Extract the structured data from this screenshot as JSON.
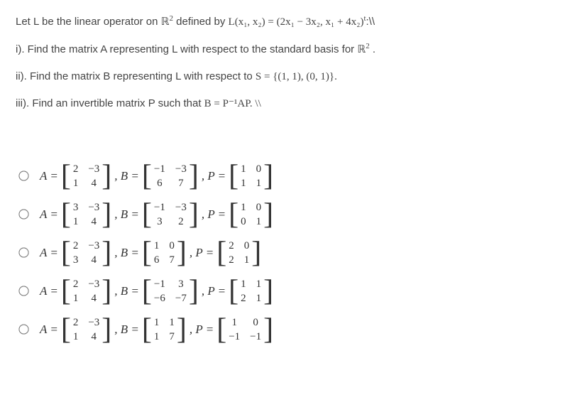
{
  "stem": {
    "line1_pre": "Let L be the linear operator on ",
    "line1_math1": "ℝ",
    "line1_math1_sup": "2",
    "line1_mid": " defined by ",
    "line1_math2": "L(x₁, x₂) = (2x₁ − 3x₂, x₁ + 4x₂)",
    "line1_math2_sup": "t",
    "line1_post": ":\\\\",
    "line2_pre": "i). Find the matrix A representing L with respect to the standard basis for ",
    "line2_math": "ℝ",
    "line2_sup": "2",
    "line2_post": " .",
    "line3_pre": "ii). Find the matrix B representing L with respect to ",
    "line3_math": "S = {(1, 1), (0, 1)}.",
    "line4_pre": "iii). Find an invertible matrix P such that ",
    "line4_math": "B = P⁻¹AP. \\\\"
  },
  "labels": {
    "A": "A =",
    "B": ", B =",
    "P": ", P ="
  },
  "options": [
    {
      "A": [
        [
          "2",
          "1"
        ],
        [
          "−3",
          "4"
        ]
      ],
      "B": [
        [
          "−1",
          "6"
        ],
        [
          "−3",
          "7"
        ]
      ],
      "P": [
        [
          "1",
          "1"
        ],
        [
          "0",
          "1"
        ]
      ]
    },
    {
      "A": [
        [
          "3",
          "1"
        ],
        [
          "−3",
          "4"
        ]
      ],
      "B": [
        [
          "−1",
          "3"
        ],
        [
          "−3",
          "2"
        ]
      ],
      "P": [
        [
          "1",
          "0"
        ],
        [
          "0",
          "1"
        ]
      ]
    },
    {
      "A": [
        [
          "2",
          "3"
        ],
        [
          "−3",
          "4"
        ]
      ],
      "B": [
        [
          "1",
          "6"
        ],
        [
          "0",
          "7"
        ]
      ],
      "P": [
        [
          "2",
          "2"
        ],
        [
          "0",
          "1"
        ]
      ]
    },
    {
      "A": [
        [
          "2",
          "1"
        ],
        [
          "−3",
          "4"
        ]
      ],
      "B": [
        [
          "−1",
          "−6"
        ],
        [
          "3",
          "−7"
        ]
      ],
      "P": [
        [
          "1",
          "2"
        ],
        [
          "1",
          "1"
        ]
      ]
    },
    {
      "A": [
        [
          "2",
          "1"
        ],
        [
          "−3",
          "4"
        ]
      ],
      "B": [
        [
          "1",
          "1"
        ],
        [
          "1",
          "7"
        ]
      ],
      "P": [
        [
          "1",
          "−1"
        ],
        [
          "0",
          "−1"
        ]
      ]
    }
  ],
  "style": {
    "bg": "#ffffff",
    "stem_color": "#444444",
    "math_color": "#333333",
    "font_size_body": 15,
    "font_size_math": 17,
    "matrix_bracket_size": 42,
    "row_gap": 14,
    "options_top_margin": 70
  }
}
